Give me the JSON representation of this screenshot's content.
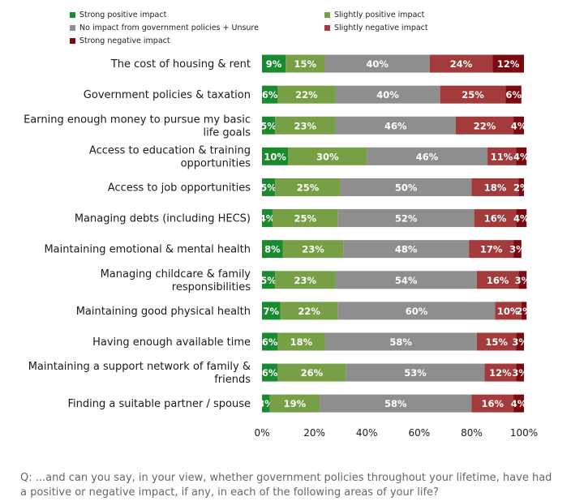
{
  "chart_data": {
    "type": "bar",
    "stacked": true,
    "orientation": "horizontal",
    "categories": [
      "The cost of housing & rent",
      "Government policies & taxation",
      "Earning enough money to pursue my basic life goals",
      "Access to education & training opportunities",
      "Access to job opportunities",
      "Managing debts (including HECS)",
      "Maintaining emotional & mental health",
      "Managing childcare & family responsibilities",
      "Maintaining good physical health",
      "Having enough available time",
      "Maintaining a support network of family & friends",
      "Finding a suitable partner / spouse"
    ],
    "series": [
      {
        "name": "Strong positive impact",
        "color": "#1a8a2e",
        "values": [
          9,
          6,
          5,
          10,
          5,
          4,
          8,
          5,
          7,
          6,
          6,
          3
        ]
      },
      {
        "name": "Slightly positive impact",
        "color": "#77a046",
        "values": [
          15,
          22,
          23,
          30,
          25,
          25,
          23,
          23,
          22,
          18,
          26,
          19
        ]
      },
      {
        "name": "No impact from government policies + Unsure",
        "color": "#8e8e8e",
        "values": [
          40,
          40,
          46,
          46,
          50,
          52,
          48,
          54,
          60,
          58,
          53,
          58
        ]
      },
      {
        "name": "Slightly negative impact",
        "color": "#a33a3c",
        "values": [
          24,
          25,
          22,
          11,
          18,
          16,
          17,
          16,
          10,
          15,
          12,
          16
        ]
      },
      {
        "name": "Strong negative impact",
        "color": "#7a0a10",
        "values": [
          12,
          6,
          4,
          4,
          2,
          4,
          3,
          3,
          2,
          3,
          3,
          4
        ]
      }
    ],
    "xlim": [
      0,
      100
    ],
    "xticks": [
      "0%",
      "20%",
      "40%",
      "60%",
      "80%",
      "100%"
    ]
  },
  "question": "Q: ...and can you say, in your view, whether government policies throughout your lifetime, have had a positive or negative impact, if any, in each of the following areas of your life?"
}
